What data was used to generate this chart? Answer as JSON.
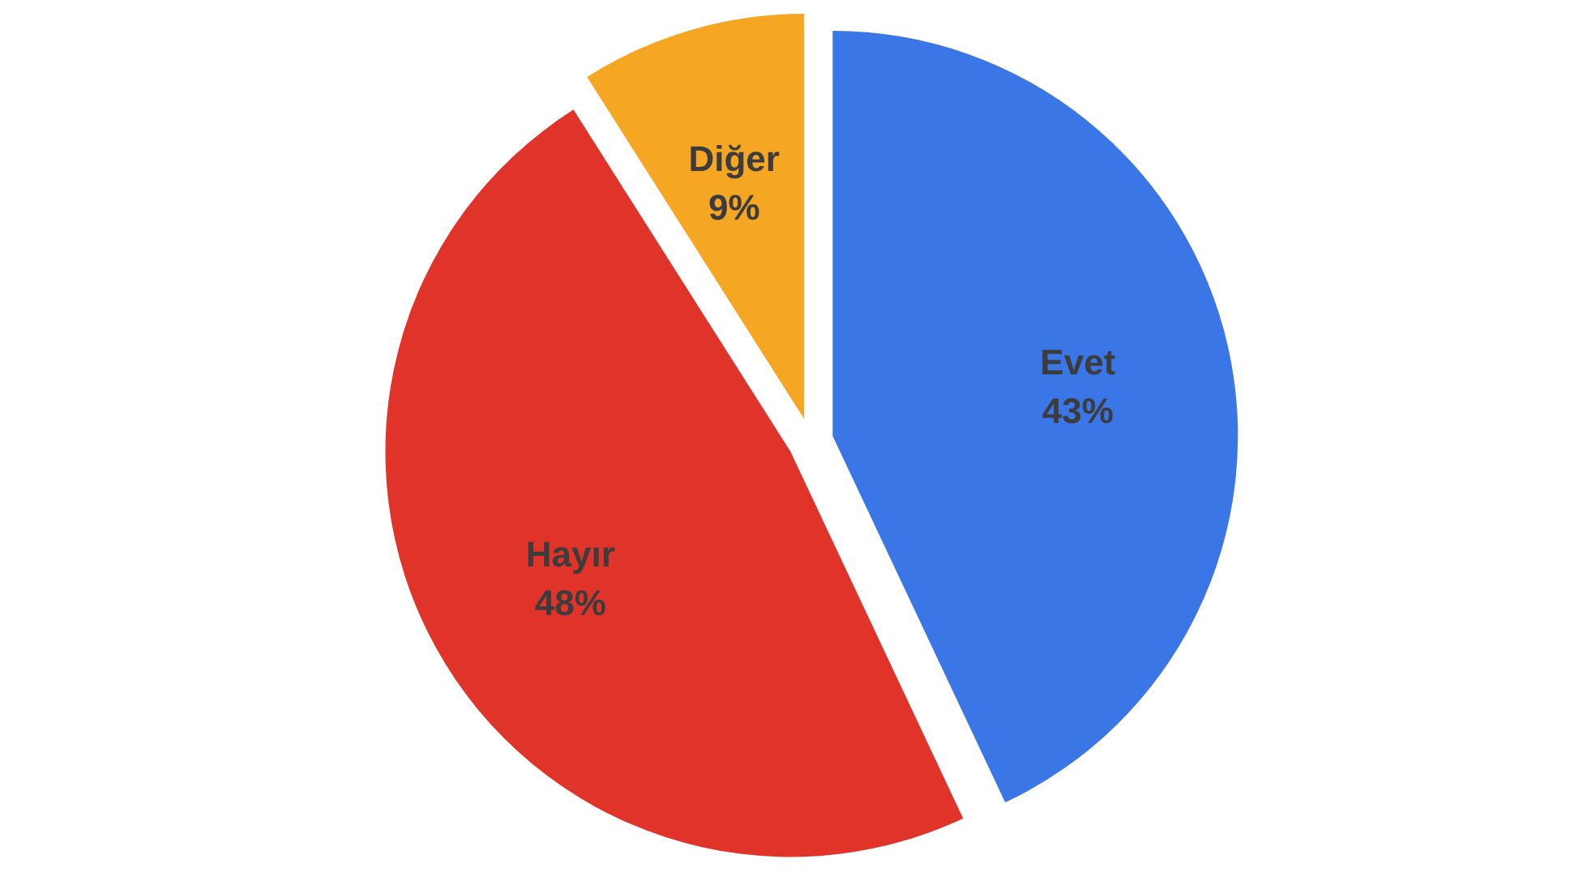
{
  "chart_data": {
    "type": "pie",
    "categories": [
      "Evet",
      "Hayır",
      "Diğer"
    ],
    "values": [
      43,
      48,
      9
    ],
    "colors": [
      "#3a76e6",
      "#e0332a",
      "#f5a623"
    ],
    "value_labels": [
      "43%",
      "48%",
      "9%"
    ]
  }
}
